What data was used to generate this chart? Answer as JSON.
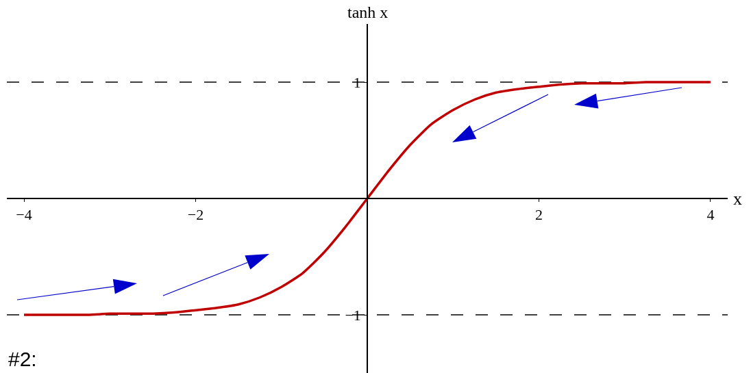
{
  "chart_data": {
    "type": "line",
    "xlabel": "x",
    "ylabel": "tanh x",
    "annotations": [
      "#2:"
    ],
    "x": [
      -4,
      -3.75,
      -3.5,
      -3.25,
      -3,
      -2.75,
      -2.5,
      -2.25,
      -2,
      -1.75,
      -1.5,
      -1.25,
      -1,
      -0.75,
      -0.5,
      -0.25,
      0,
      0.25,
      0.5,
      0.75,
      1,
      1.25,
      1.5,
      1.75,
      2,
      2.25,
      2.5,
      2.75,
      3,
      3.25,
      3.5,
      3.75,
      4
    ],
    "series": [
      {
        "color": "#c00000",
        "values": [
          -1.0,
          -1.0,
          -1.0,
          -1.0,
          -0.99,
          -0.99,
          -0.99,
          -0.98,
          -0.96,
          -0.94,
          -0.91,
          -0.85,
          -0.76,
          -0.64,
          -0.46,
          -0.24,
          0,
          0.24,
          0.46,
          0.64,
          0.76,
          0.85,
          0.91,
          0.94,
          0.96,
          0.98,
          0.99,
          0.99,
          0.99,
          1.0,
          1.0,
          1.0,
          1.0
        ]
      }
    ],
    "xlim": [
      -4.2,
      4.2
    ],
    "ylim": [
      -1.5,
      1.5
    ],
    "xticks": [
      -4,
      -2,
      2,
      4
    ],
    "yticks": [
      1,
      -1
    ],
    "ref_lines": [
      {
        "axis": "y",
        "value": 1,
        "color": "#000000",
        "line_style": "dashed"
      },
      {
        "axis": "y",
        "value": -1,
        "color": "#000000",
        "line_style": "dashed"
      }
    ]
  }
}
